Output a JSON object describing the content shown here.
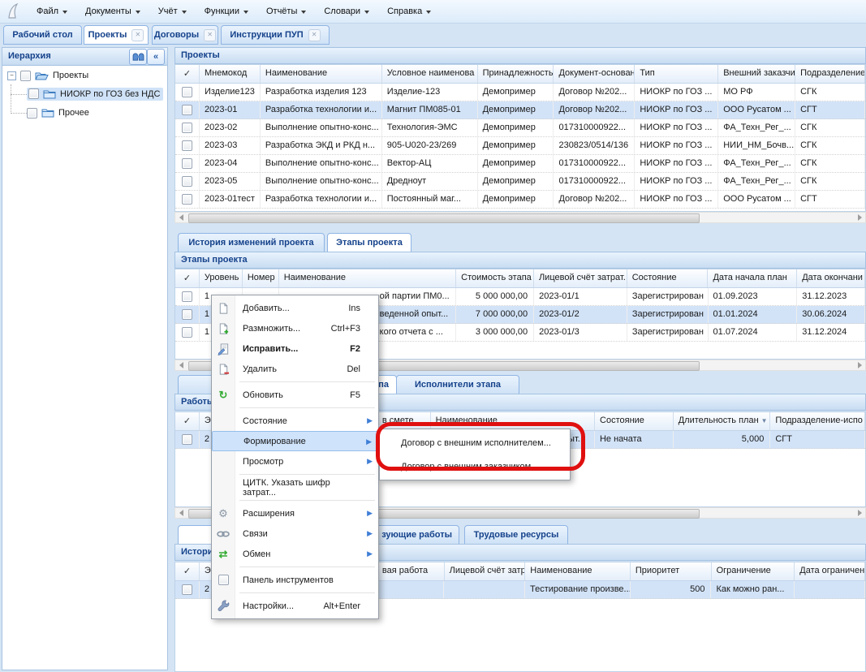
{
  "icons": {
    "close": "✕",
    "collapse": "«",
    "minus": "−",
    "submenu_arrow": "▶",
    "refresh": "↻",
    "exchange": "⇄",
    "gear": "⚙",
    "sort_desc": "▼"
  },
  "menubar": {
    "items": [
      {
        "label": "Файл"
      },
      {
        "label": "Документы"
      },
      {
        "label": "Учёт"
      },
      {
        "label": "Функции"
      },
      {
        "label": "Отчёты"
      },
      {
        "label": "Словари"
      },
      {
        "label": "Справка"
      }
    ]
  },
  "tabbar": {
    "tabs": [
      {
        "label": "Рабочий стол"
      },
      {
        "label": "Проекты"
      },
      {
        "label": "Договоры"
      },
      {
        "label": "Инструкции ПУП"
      }
    ]
  },
  "sidebar": {
    "title": "Иерархия",
    "tree": [
      {
        "label": "Проекты"
      },
      {
        "label": "НИОКР по ГОЗ без НДС",
        "selected": true
      },
      {
        "label": "Прочее"
      }
    ]
  },
  "projects": {
    "title": "Проекты",
    "columns": [
      "✓",
      "Мнемокод",
      "Наименование",
      "Условное наименова",
      "Принадлежность",
      "Документ-основан",
      "Тип",
      "Внешний заказчик",
      "Подразделение"
    ],
    "rows": [
      [
        "Изделие123",
        "Разработка изделия 123",
        "Изделие-123",
        "Демопример",
        "Договор №202...",
        "НИОКР по ГОЗ ...",
        "МО РФ",
        "СГК"
      ],
      [
        "2023-01",
        "Разработка технологии и...",
        "Магнит ПМ085-01",
        "Демопример",
        "Договор №202...",
        "НИОКР по ГОЗ ...",
        "ООО Русатом ...",
        "СГТ"
      ],
      [
        "2023-02",
        "Выполнение опытно-конс...",
        "Технология-ЭМС",
        "Демопример",
        "017310000922...",
        "НИОКР по ГОЗ ...",
        "ФА_Техн_Рег_...",
        "СГК"
      ],
      [
        "2023-03",
        "Разработка ЭКД и РКД н...",
        "905-U020-23/269",
        "Демопример",
        "230823/0514/136",
        "НИОКР по ГОЗ ...",
        "НИИ_НМ_Бочв...",
        "СГК"
      ],
      [
        "2023-04",
        "Выполнение опытно-конс...",
        "Вектор-АЦ",
        "Демопример",
        "017310000922...",
        "НИОКР по ГОЗ ...",
        "ФА_Техн_Рег_...",
        "СГК"
      ],
      [
        "2023-05",
        "Выполнение опытно-конс...",
        "Дредноут",
        "Демопример",
        "017310000922...",
        "НИОКР по ГОЗ ...",
        "ФА_Техн_Рег_...",
        "СГК"
      ],
      [
        "2023-01тест",
        "Разработка технологии и...",
        "Постоянный маг...",
        "Демопример",
        "Договор №202...",
        "НИОКР по ГОЗ ...",
        "ООО Русатом ...",
        "СГТ"
      ]
    ],
    "selected": 1
  },
  "stages": {
    "tabs": [
      {
        "label": "История изменений проекта"
      },
      {
        "label": "Этапы проекта"
      }
    ],
    "title": "Этапы проекта",
    "columns": [
      "✓",
      "Уровень",
      "Номер",
      "Наименование",
      "Стоимость этапа",
      "Лицевой счёт затрат.",
      "Состояние",
      "Дата начала план",
      "Дата окончани"
    ],
    "rows": [
      [
        "1",
        "",
        "ой партии ПМ0...",
        "5 000 000,00",
        "2023-01/1",
        "Зарегистрирован",
        "01.09.2023",
        "31.12.2023"
      ],
      [
        "1",
        "",
        "веденной опыт...",
        "7 000 000,00",
        "2023-01/2",
        "Зарегистрирован",
        "01.01.2024",
        "30.06.2024"
      ],
      [
        "1",
        "",
        "кого отчета с ...",
        "3 000 000,00",
        "2023-01/3",
        "Зарегистрирован",
        "01.07.2024",
        "31.12.2024"
      ]
    ],
    "selected": 1
  },
  "works": {
    "tabs": [
      {
        "label": "История"
      },
      {
        "label": "Работы этапа"
      },
      {
        "label": "Исполнители этапа"
      }
    ],
    "title": "Работы этапа",
    "columns": [
      "✓",
      "Эта",
      "в смете",
      "Наименование",
      "Состояние",
      "Длительность план",
      "Подразделение-испо"
    ],
    "rows": [
      [
        "2",
        "",
        "ыт...",
        "Не начата",
        "5,000",
        "СГТ"
      ]
    ],
    "selected": 0
  },
  "resources": {
    "tabs": [
      {
        "label": "История"
      },
      {
        "label": "зующие работы"
      },
      {
        "label": "Трудовые ресурсы"
      }
    ],
    "title": "История",
    "columns": [
      "✓",
      "Эта",
      "вая работа",
      "Лицевой счёт затр",
      "Наименование",
      "Приоритет",
      "Ограничение",
      "Дата ограничени"
    ],
    "rows": [
      [
        "2",
        "",
        "",
        "Тестирование произве...",
        "500",
        "Как можно ран...",
        ""
      ]
    ],
    "selected": 0
  },
  "menu": {
    "items": [
      {
        "label": "Добавить...",
        "shortcut": "Ins"
      },
      {
        "label": "Размножить...",
        "shortcut": "Ctrl+F3"
      },
      {
        "label": "Исправить...",
        "shortcut": "F2"
      },
      {
        "label": "Удалить",
        "shortcut": "Del"
      },
      {
        "label": "Обновить",
        "shortcut": "F5"
      },
      {
        "label": "Состояние",
        "shortcut": ""
      },
      {
        "label": "Формирование",
        "shortcut": ""
      },
      {
        "label": "Просмотр",
        "shortcut": ""
      },
      {
        "label": "ЦИТК. Указать шифр затрат...",
        "shortcut": ""
      },
      {
        "label": "Расширения",
        "shortcut": ""
      },
      {
        "label": "Связи",
        "shortcut": ""
      },
      {
        "label": "Обмен",
        "shortcut": ""
      },
      {
        "label": "Панель инструментов",
        "shortcut": ""
      },
      {
        "label": "Настройки...",
        "shortcut": "Alt+Enter"
      }
    ]
  },
  "submenu": {
    "items": [
      {
        "label": "Договор с внешним исполнителем..."
      },
      {
        "label": "Договор с внешним заказчиком..."
      }
    ]
  },
  "annotation": {
    "shape": "rounded-rect",
    "color": "#e01010",
    "target": "Договор с внешним исполнителем..."
  }
}
